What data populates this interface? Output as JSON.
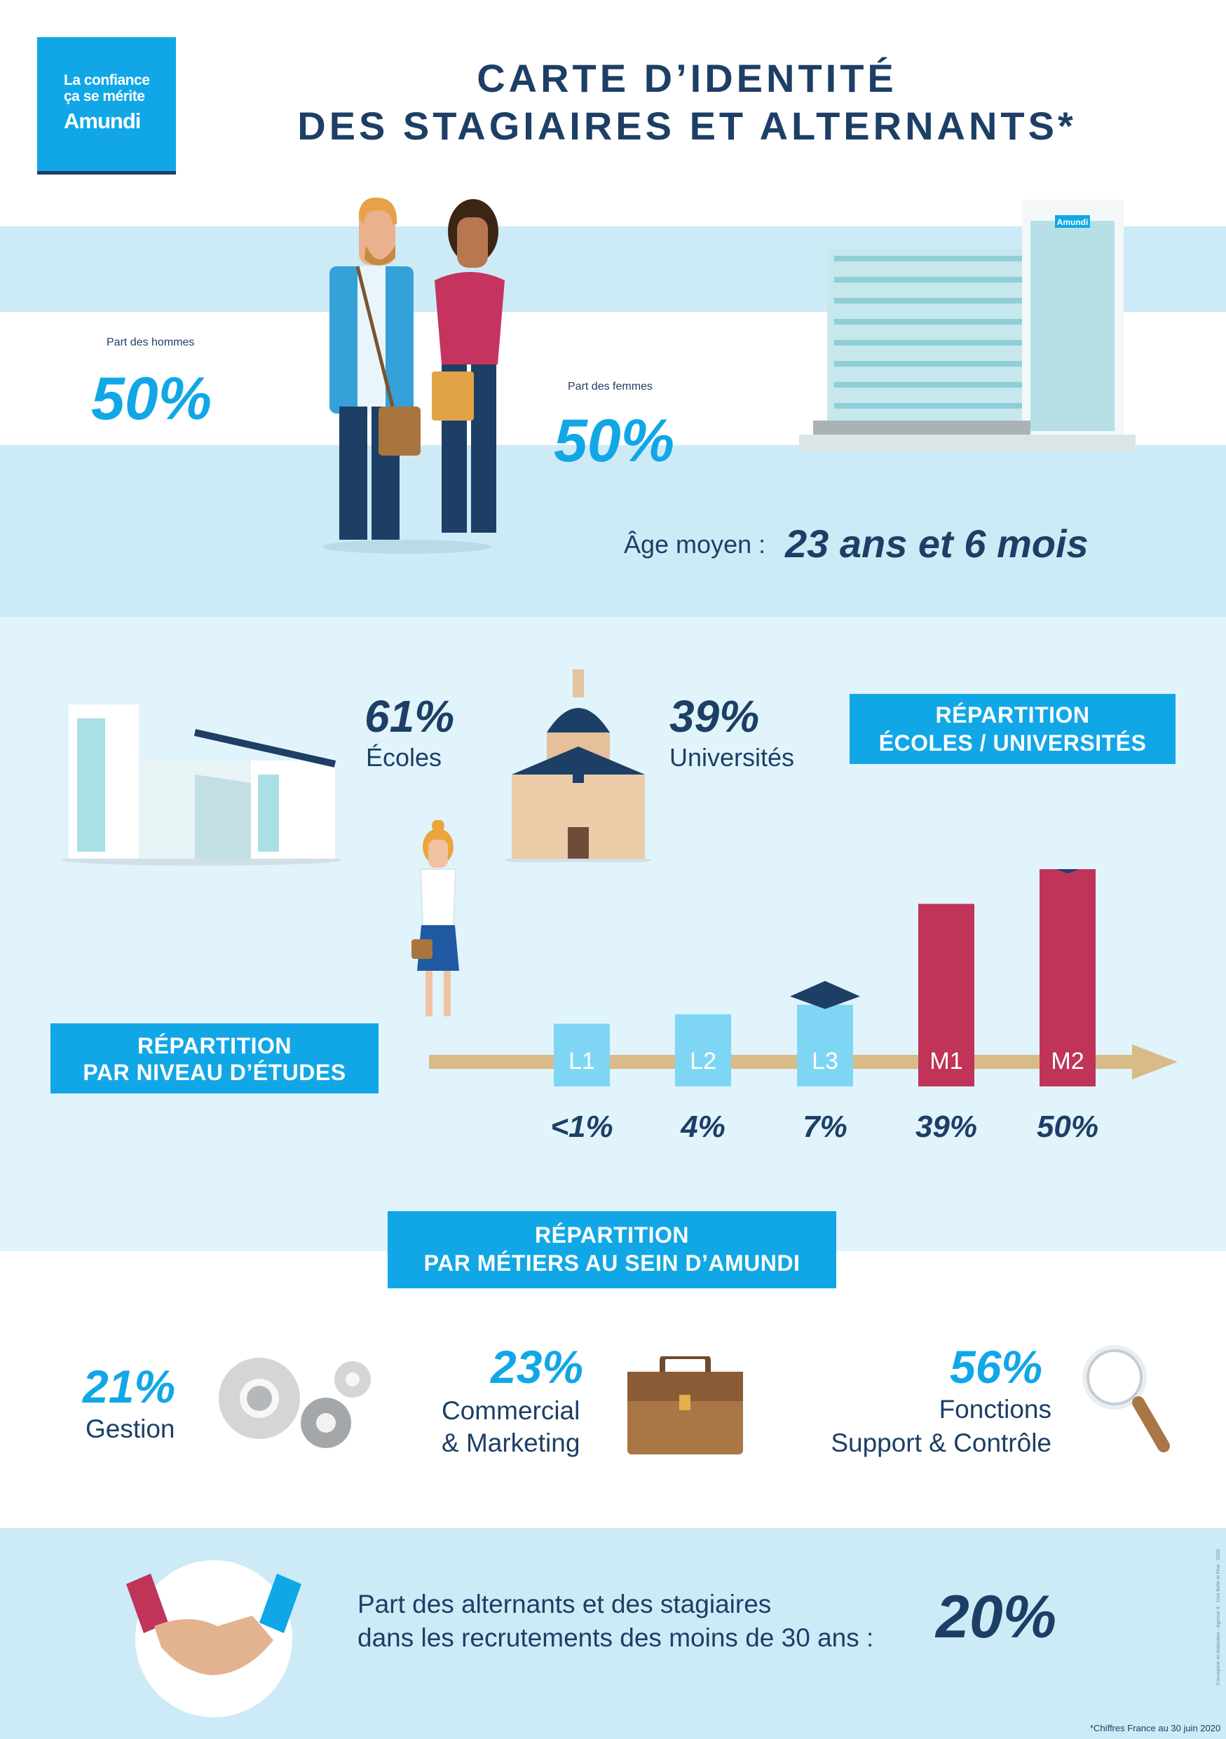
{
  "logo": {
    "line1": "La confiance",
    "line2": "ça se mérite",
    "brand": "Amundi"
  },
  "header": {
    "title_line1": "CARTE D’IDENTITÉ",
    "title_line2": "DES STAGIAIRES ET ALTERNANTS*"
  },
  "building_sign": "Amundi",
  "gender": {
    "men_label": "Part des hommes",
    "men_value": "50%",
    "women_label": "Part des femmes",
    "women_value": "50%"
  },
  "age": {
    "label": "Âge moyen :",
    "value": "23 ans et 6 mois"
  },
  "schools": {
    "ecoles_value": "61%",
    "ecoles_label": "Écoles",
    "univ_value": "39%",
    "univ_label": "Universités",
    "ribbon_line1": "RÉPARTITION",
    "ribbon_line2": "ÉCOLES / UNIVERSITÉS"
  },
  "levels": {
    "ribbon_line1": "RÉPARTITION",
    "ribbon_line2": "PAR NIVEAU D’ÉTUDES"
  },
  "chart_data": {
    "type": "bar",
    "categories": [
      "L1",
      "L2",
      "L3",
      "M1",
      "M2"
    ],
    "values": [
      1,
      4,
      7,
      39,
      50
    ],
    "value_labels": [
      "<1%",
      "4%",
      "7%",
      "39%",
      "50%"
    ],
    "colors": [
      "#7fd6f4",
      "#7fd6f4",
      "#7fd6f4",
      "#c0345a",
      "#c0345a"
    ],
    "title": "",
    "xlabel": "",
    "ylabel": ""
  },
  "jobs": {
    "ribbon_line1": "RÉPARTITION",
    "ribbon_line2": "PAR MÉTIERS AU SEIN D’AMUNDI",
    "items": [
      {
        "value": "21%",
        "line1": "Gestion",
        "line2": ""
      },
      {
        "value": "23%",
        "line1": "Commercial",
        "line2": "& Marketing"
      },
      {
        "value": "56%",
        "line1": "Fonctions",
        "line2": "Support & Contrôle"
      }
    ]
  },
  "recruit": {
    "line1": "Part des alternants et des stagiaires",
    "line2": "dans les recrutements des moins de 30 ans :",
    "value": "20%"
  },
  "footnote": "*Chiffres France au 30 juin 2020",
  "credit": "Conception et réalisation : Agence X · Une Belle et Fine · 2020",
  "colors": {
    "brand_blue": "#11a7e6",
    "navy": "#1d3f66",
    "light_band": "#cdebf7",
    "pale_band": "#e1f4fc",
    "crimson": "#c0345a",
    "gold_arrow": "#d8bb86"
  }
}
